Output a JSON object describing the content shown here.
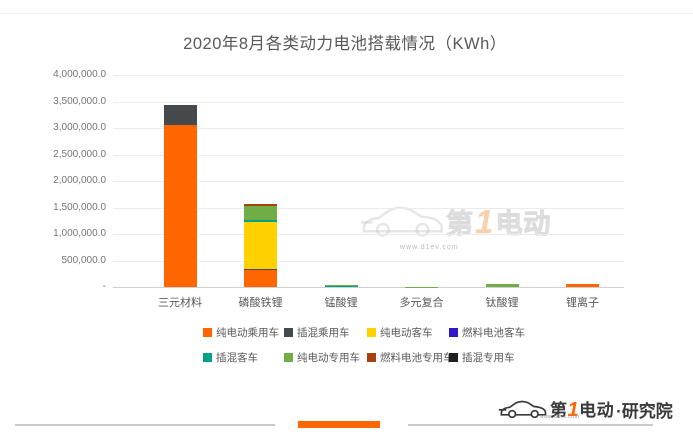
{
  "chart_data": {
    "type": "bar",
    "stacked": true,
    "title": "2020年8月各类动力电池搭载情况（KWh）",
    "categories": [
      "三元材料",
      "磷酸铁锂",
      "锰酸锂",
      "多元复合",
      "钛酸锂",
      "锂离子"
    ],
    "series": [
      {
        "name": "纯电动乘用车",
        "color": "#ff6600",
        "values": [
          3052000,
          330000,
          0,
          0,
          0,
          66000
        ]
      },
      {
        "name": "插混乘用车",
        "color": "#45494b",
        "values": [
          386000,
          15000,
          0,
          0,
          0,
          0
        ]
      },
      {
        "name": "纯电动客车",
        "color": "#ffd100",
        "values": [
          0,
          872000,
          0,
          0,
          0,
          0
        ]
      },
      {
        "name": "燃料电池客车",
        "color": "#3118c8",
        "values": [
          0,
          0,
          0,
          0,
          0,
          0
        ]
      },
      {
        "name": "插混客车",
        "color": "#00a287",
        "values": [
          0,
          55000,
          15000,
          0,
          0,
          0
        ]
      },
      {
        "name": "纯电动专用车",
        "color": "#70ad47",
        "values": [
          0,
          250000,
          30000,
          4000,
          52000,
          0
        ]
      },
      {
        "name": "燃料电池专用车",
        "color": "#a5400f",
        "values": [
          0,
          48000,
          0,
          0,
          0,
          0
        ]
      },
      {
        "name": "插混专用车",
        "color": "#1f1f1f",
        "values": [
          0,
          0,
          0,
          0,
          0,
          0
        ]
      }
    ],
    "y_tick_labels": [
      "4,000,000.0",
      "3,500,000.0",
      "3,000,000.0",
      "2,500,000.0",
      "2,000,000.0",
      "1,500,000.0",
      "1,000,000.0",
      "500,000.0",
      "-"
    ],
    "ylim": [
      0,
      4000000
    ],
    "ytick_step": 500000,
    "grid": true,
    "legend_position": "bottom"
  },
  "watermark": {
    "brand_pre": "第",
    "brand_num": "1",
    "brand_post": "电动",
    "url": "www.d1ev.com"
  },
  "footer_logo": {
    "brand_pre": "第",
    "brand_num": "1",
    "brand_post": "电动",
    "dot": "·",
    "suffix": "研究院",
    "url": "www.d1ev.com",
    "accent_color": "#ff6600"
  }
}
